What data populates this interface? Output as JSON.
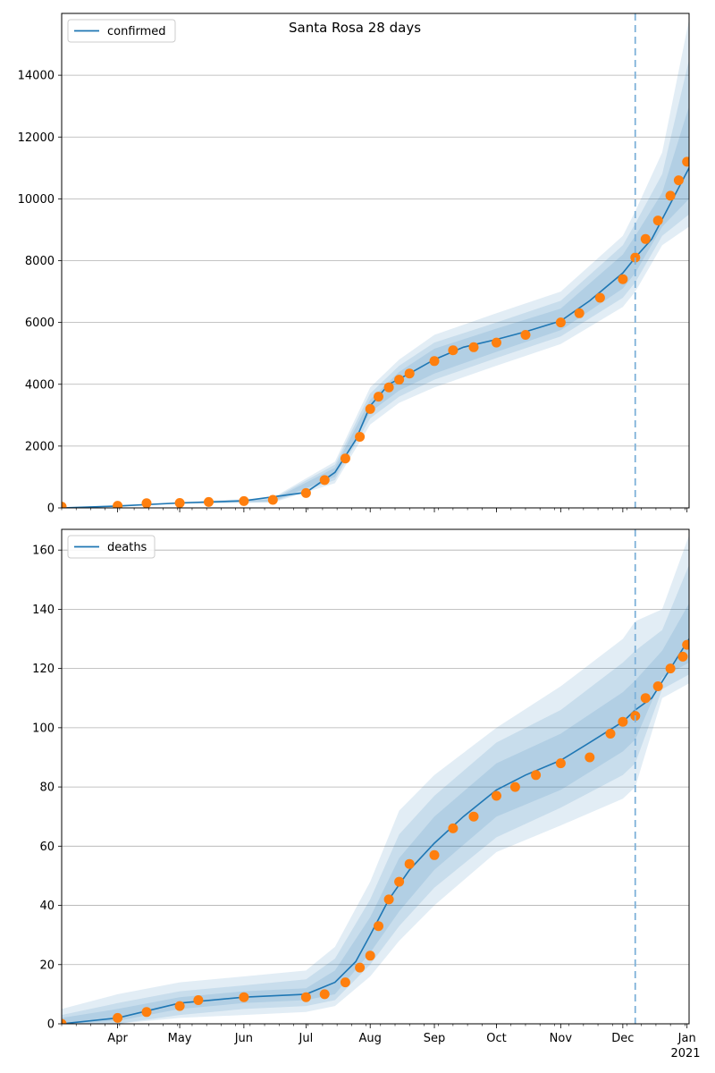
{
  "title": "Santa Rosa 28 days",
  "colors": {
    "model_line": "#1f77b4",
    "observed": "#ff7f0e",
    "band": "#1f77b4",
    "forecast_line": "#7fb2d9",
    "grid": "#b0b0b0"
  },
  "x_axis": {
    "start": "2020-03-05",
    "end": "2021-01-02",
    "month_labels": [
      "Apr",
      "May",
      "Jun",
      "Jul",
      "Aug",
      "Sep",
      "Oct",
      "Nov",
      "Dec",
      "Jan"
    ],
    "month_dates": [
      "2020-04-01",
      "2020-05-01",
      "2020-06-01",
      "2020-07-01",
      "2020-08-01",
      "2020-09-01",
      "2020-10-01",
      "2020-11-01",
      "2020-12-01",
      "2021-01-01"
    ],
    "year_label": "2021",
    "forecast_start": "2020-12-07"
  },
  "chart_data": [
    {
      "type": "line",
      "legend": "confirmed",
      "legend_position": "top-left",
      "grid": "horizontal",
      "ylim": [
        0,
        16000
      ],
      "yticks": [
        0,
        2000,
        4000,
        6000,
        8000,
        10000,
        12000,
        14000
      ],
      "series": [
        {
          "name": "confirmed",
          "x": [
            "2020-03-05",
            "2020-04-01",
            "2020-05-01",
            "2020-06-01",
            "2020-07-01",
            "2020-07-15",
            "2020-07-25",
            "2020-08-01",
            "2020-08-10",
            "2020-08-20",
            "2020-09-01",
            "2020-09-15",
            "2020-10-01",
            "2020-10-15",
            "2020-11-01",
            "2020-11-15",
            "2020-12-01",
            "2020-12-07",
            "2020-12-15",
            "2021-01-02"
          ],
          "values": [
            0,
            60,
            160,
            230,
            500,
            1150,
            2200,
            3300,
            4000,
            4350,
            4800,
            5200,
            5450,
            5700,
            6050,
            6700,
            7600,
            8100,
            8700,
            11000
          ]
        }
      ],
      "observed": {
        "x": [
          "2020-03-05",
          "2020-04-01",
          "2020-04-15",
          "2020-05-01",
          "2020-05-15",
          "2020-06-01",
          "2020-06-15",
          "2020-07-01",
          "2020-07-10",
          "2020-07-20",
          "2020-07-27",
          "2020-08-01",
          "2020-08-05",
          "2020-08-10",
          "2020-08-15",
          "2020-08-20",
          "2020-09-01",
          "2020-09-10",
          "2020-09-20",
          "2020-10-01",
          "2020-10-15",
          "2020-11-01",
          "2020-11-10",
          "2020-11-20",
          "2020-12-01",
          "2020-12-07",
          "2020-12-12",
          "2020-12-18",
          "2020-12-24",
          "2020-12-28",
          "2021-01-01"
        ],
        "values": [
          40,
          70,
          150,
          160,
          190,
          220,
          260,
          480,
          900,
          1600,
          2300,
          3200,
          3600,
          3900,
          4150,
          4350,
          4750,
          5100,
          5200,
          5350,
          5600,
          6000,
          6300,
          6800,
          7400,
          8100,
          8700,
          9300,
          10100,
          10600,
          11200
        ]
      },
      "bands": [
        {
          "x": [
            "2020-03-05",
            "2020-05-01",
            "2020-06-15",
            "2020-07-15",
            "2020-08-01",
            "2020-08-15",
            "2020-09-01",
            "2020-10-01",
            "2020-11-01",
            "2020-12-01",
            "2020-12-07",
            "2020-12-20",
            "2021-01-02"
          ],
          "low": [
            0,
            130,
            170,
            800,
            2700,
            3400,
            3900,
            4600,
            5300,
            6500,
            7000,
            8500,
            9100
          ],
          "high": [
            0,
            190,
            330,
            1500,
            3900,
            4800,
            5600,
            6300,
            7000,
            8800,
            9600,
            11500,
            15800
          ]
        },
        {
          "x": [
            "2020-03-05",
            "2020-05-01",
            "2020-06-15",
            "2020-07-15",
            "2020-08-01",
            "2020-08-15",
            "2020-09-01",
            "2020-10-01",
            "2020-11-01",
            "2020-12-01",
            "2020-12-07",
            "2020-12-20",
            "2021-01-02"
          ],
          "low": [
            0,
            140,
            190,
            900,
            2900,
            3600,
            4150,
            4850,
            5550,
            6800,
            7300,
            8800,
            9500
          ],
          "high": [
            0,
            180,
            300,
            1400,
            3700,
            4600,
            5350,
            6000,
            6700,
            8500,
            9200,
            10800,
            14500
          ]
        },
        {
          "x": [
            "2020-03-05",
            "2020-05-01",
            "2020-06-15",
            "2020-07-15",
            "2020-08-01",
            "2020-08-15",
            "2020-09-01",
            "2020-10-01",
            "2020-11-01",
            "2020-12-01",
            "2020-12-07",
            "2020-12-20",
            "2021-01-02"
          ],
          "low": [
            0,
            150,
            210,
            1000,
            3100,
            3800,
            4350,
            5050,
            5750,
            7100,
            7600,
            9100,
            10000
          ],
          "high": [
            0,
            170,
            270,
            1300,
            3500,
            4400,
            5150,
            5800,
            6450,
            8200,
            8800,
            10200,
            13000
          ]
        }
      ]
    },
    {
      "type": "line",
      "legend": "deaths",
      "legend_position": "top-left",
      "grid": "horizontal",
      "ylim": [
        0,
        167
      ],
      "yticks": [
        0,
        20,
        40,
        60,
        80,
        100,
        120,
        140,
        160
      ],
      "series": [
        {
          "name": "deaths",
          "x": [
            "2020-03-05",
            "2020-04-01",
            "2020-05-01",
            "2020-06-01",
            "2020-07-01",
            "2020-07-15",
            "2020-07-25",
            "2020-08-01",
            "2020-08-10",
            "2020-08-20",
            "2020-09-01",
            "2020-09-15",
            "2020-10-01",
            "2020-10-15",
            "2020-11-01",
            "2020-11-15",
            "2020-12-01",
            "2020-12-07",
            "2020-12-15",
            "2021-01-02"
          ],
          "values": [
            0,
            2,
            7,
            9,
            10,
            14,
            21,
            30,
            42,
            52,
            61,
            70,
            79,
            84,
            89,
            95,
            102,
            106,
            110,
            130
          ]
        }
      ],
      "observed": {
        "x": [
          "2020-03-05",
          "2020-04-01",
          "2020-04-15",
          "2020-05-01",
          "2020-05-10",
          "2020-06-01",
          "2020-07-01",
          "2020-07-10",
          "2020-07-20",
          "2020-07-27",
          "2020-08-01",
          "2020-08-05",
          "2020-08-10",
          "2020-08-15",
          "2020-08-20",
          "2020-09-01",
          "2020-09-10",
          "2020-09-20",
          "2020-10-01",
          "2020-10-10",
          "2020-10-20",
          "2020-11-01",
          "2020-11-15",
          "2020-11-25",
          "2020-12-01",
          "2020-12-07",
          "2020-12-12",
          "2020-12-18",
          "2020-12-24",
          "2020-12-30",
          "2021-01-01"
        ],
        "values": [
          0,
          2,
          4,
          6,
          8,
          9,
          9,
          10,
          14,
          19,
          23,
          33,
          42,
          48,
          54,
          57,
          66,
          70,
          77,
          80,
          84,
          88,
          90,
          98,
          102,
          104,
          110,
          114,
          120,
          124,
          128
        ]
      },
      "bands": [
        {
          "x": [
            "2020-03-05",
            "2020-04-01",
            "2020-05-01",
            "2020-06-01",
            "2020-07-01",
            "2020-07-15",
            "2020-08-01",
            "2020-08-15",
            "2020-09-01",
            "2020-10-01",
            "2020-11-01",
            "2020-12-01",
            "2020-12-07",
            "2020-12-20",
            "2021-01-02"
          ],
          "low": [
            0,
            0,
            2,
            3,
            4,
            6,
            16,
            28,
            40,
            58,
            67,
            76,
            80,
            110,
            115
          ],
          "high": [
            5,
            10,
            14,
            16,
            18,
            26,
            48,
            72,
            84,
            100,
            114,
            130,
            136,
            140,
            165
          ]
        },
        {
          "x": [
            "2020-03-05",
            "2020-04-01",
            "2020-05-01",
            "2020-06-01",
            "2020-07-01",
            "2020-07-15",
            "2020-08-01",
            "2020-08-15",
            "2020-09-01",
            "2020-10-01",
            "2020-11-01",
            "2020-12-01",
            "2020-12-07",
            "2020-12-20",
            "2021-01-02"
          ],
          "low": [
            0,
            0,
            3,
            5,
            6,
            8,
            20,
            33,
            46,
            63,
            73,
            84,
            88,
            113,
            118
          ],
          "high": [
            3,
            7,
            11,
            13,
            15,
            22,
            42,
            64,
            77,
            95,
            106,
            122,
            126,
            133,
            155
          ]
        },
        {
          "x": [
            "2020-03-05",
            "2020-04-01",
            "2020-05-01",
            "2020-06-01",
            "2020-07-01",
            "2020-07-15",
            "2020-08-01",
            "2020-08-15",
            "2020-09-01",
            "2020-10-01",
            "2020-11-01",
            "2020-12-01",
            "2020-12-07",
            "2020-12-20",
            "2021-01-02"
          ],
          "low": [
            0,
            1,
            5,
            7,
            8,
            10,
            24,
            38,
            52,
            70,
            79,
            92,
            96,
            117,
            122
          ],
          "high": [
            2,
            5,
            9,
            11,
            12,
            18,
            36,
            56,
            70,
            88,
            98,
            112,
            116,
            126,
            142
          ]
        }
      ]
    }
  ]
}
